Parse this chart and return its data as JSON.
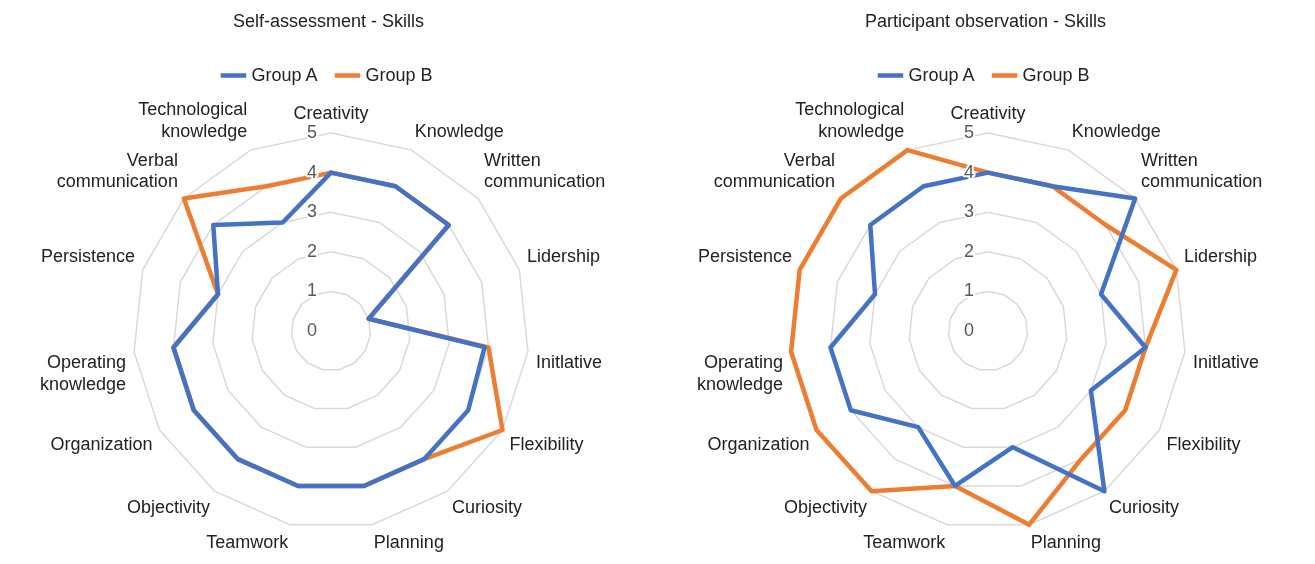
{
  "chart_data": [
    {
      "type": "radar",
      "title": "Self-assessment - Skills",
      "categories": [
        "Creativity",
        "Knowledge",
        "Written communication",
        "Lidership",
        "Initlative",
        "Flexibility",
        "Curiosity",
        "Planning",
        "Teamwork",
        "Objectivity",
        "Organization",
        "Operating knowledge",
        "Persistence",
        "Verbal communication",
        "Technological knowledge"
      ],
      "ylim": [
        0,
        5
      ],
      "yticks": [
        0,
        1,
        2,
        3,
        4,
        5
      ],
      "grid": true,
      "legend": "top",
      "marker": "none",
      "series": [
        {
          "name": "Group A",
          "color": "#4472c4",
          "values": [
            4,
            4,
            4,
            1,
            3.9,
            4,
            4,
            4,
            4,
            4,
            4,
            4,
            3,
            4,
            3
          ]
        },
        {
          "name": "Group B",
          "color": "#ed7d31",
          "values": [
            4,
            4,
            4,
            1,
            4,
            5,
            4,
            4,
            4,
            4,
            4,
            4,
            3,
            5,
            4
          ]
        }
      ]
    },
    {
      "type": "radar",
      "title": "Participant observation - Skills",
      "categories": [
        "Creativity",
        "Knowledge",
        "Written communication",
        "Lidership",
        "Initlative",
        "Flexibility",
        "Curiosity",
        "Planning",
        "Teamwork",
        "Objectivity",
        "Organization",
        "Operating knowledge",
        "Persistence",
        "Verbal communication",
        "Technological knowledge"
      ],
      "ylim": [
        0,
        5
      ],
      "yticks": [
        0,
        1,
        2,
        3,
        4,
        5
      ],
      "grid": true,
      "legend": "top",
      "marker": "none",
      "series": [
        {
          "name": "Group A",
          "color": "#4472c4",
          "values": [
            4,
            4,
            5,
            3,
            4,
            3,
            5,
            3,
            4,
            3,
            4,
            4,
            3,
            4,
            4
          ]
        },
        {
          "name": "Group B",
          "color": "#ed7d31",
          "values": [
            4,
            4,
            4,
            5,
            4,
            4,
            4,
            5,
            4,
            5,
            5,
            5,
            5,
            5,
            5
          ]
        }
      ]
    }
  ]
}
